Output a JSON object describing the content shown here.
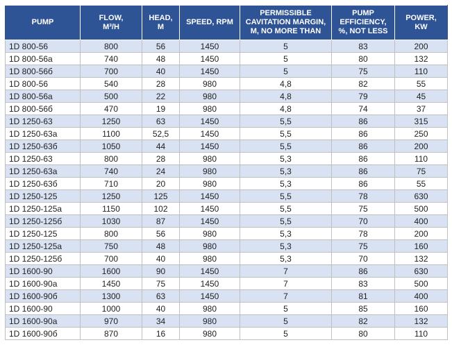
{
  "colors": {
    "header_bg": "#2F5496",
    "header_text": "#FFFFFF",
    "row_alt_bg": "#D9E2F3",
    "row_bg": "#FFFFFF",
    "grid_line": "#BFBFBF",
    "body_text": "#1F1F1F"
  },
  "chart_data": {
    "type": "table",
    "columns": [
      "PUMP",
      "FLOW,\nM³/H",
      "HEAD,\nM",
      "SPEED, RPM",
      "PERMISSIBLE\nCAVITATION MARGIN,\nM, NO MORE THAN",
      "PUMP\nEFFICIENCY,\n%, NOT LESS",
      "POWER,\nKW"
    ],
    "rows": [
      [
        "1D 800-56",
        "800",
        "56",
        "1450",
        "5",
        "83",
        "200"
      ],
      [
        "1D 800-56a",
        "740",
        "48",
        "1450",
        "5",
        "80",
        "132"
      ],
      [
        "1D 800-56б",
        "700",
        "40",
        "1450",
        "5",
        "75",
        "110"
      ],
      [
        "1D 800-56",
        "540",
        "28",
        "980",
        "4,8",
        "82",
        "55"
      ],
      [
        "1D 800-56a",
        "500",
        "22",
        "980",
        "4,8",
        "79",
        "45"
      ],
      [
        "1D 800-56б",
        "470",
        "19",
        "980",
        "4,8",
        "74",
        "37"
      ],
      [
        "1D 1250-63",
        "1250",
        "63",
        "1450",
        "5,5",
        "86",
        "315"
      ],
      [
        "1D 1250-63a",
        "1100",
        "52,5",
        "1450",
        "5,5",
        "86",
        "250"
      ],
      [
        "1D 1250-63б",
        "1050",
        "44",
        "1450",
        "5,5",
        "86",
        "200"
      ],
      [
        "1D 1250-63",
        "800",
        "28",
        "980",
        "5,3",
        "86",
        "110"
      ],
      [
        "1D 1250-63a",
        "740",
        "24",
        "980",
        "5,3",
        "86",
        "75"
      ],
      [
        "1D 1250-63б",
        "710",
        "20",
        "980",
        "5,3",
        "86",
        "55"
      ],
      [
        "1D 1250-125",
        "1250",
        "125",
        "1450",
        "5,5",
        "78",
        "630"
      ],
      [
        "1D 1250-125a",
        "1150",
        "102",
        "1450",
        "5,5",
        "75",
        "500"
      ],
      [
        "1D 1250-125б",
        "1030",
        "87",
        "1450",
        "5,5",
        "70",
        "400"
      ],
      [
        "1D 1250-125",
        "800",
        "56",
        "980",
        "5,3",
        "78",
        "200"
      ],
      [
        "1D 1250-125a",
        "750",
        "48",
        "980",
        "5,3",
        "75",
        "160"
      ],
      [
        "1D 1250-125б",
        "700",
        "40",
        "980",
        "5,3",
        "70",
        "132"
      ],
      [
        "1D 1600-90",
        "1600",
        "90",
        "1450",
        "7",
        "86",
        "630"
      ],
      [
        "1D 1600-90a",
        "1450",
        "75",
        "1450",
        "7",
        "83",
        "500"
      ],
      [
        "1D 1600-90б",
        "1300",
        "63",
        "1450",
        "7",
        "81",
        "400"
      ],
      [
        "1D 1600-90",
        "1000",
        "40",
        "980",
        "5",
        "85",
        "160"
      ],
      [
        "1D 1600-90a",
        "970",
        "34",
        "980",
        "5",
        "82",
        "132"
      ],
      [
        "1D 1600-90б",
        "870",
        "16",
        "980",
        "5",
        "80",
        "110"
      ]
    ]
  }
}
